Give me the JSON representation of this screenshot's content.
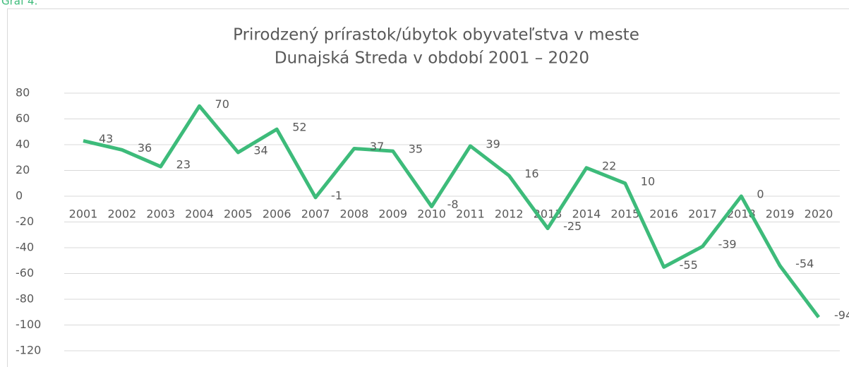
{
  "caption": "Graf 4.",
  "chart_data": {
    "type": "line",
    "title": [
      "Prirodzený prírastok/úbytok obyvateľstva v meste",
      "Dunajská Streda v období 2001 – 2020"
    ],
    "categories": [
      "2001",
      "2002",
      "2003",
      "2004",
      "2005",
      "2006",
      "2007",
      "2008",
      "2009",
      "2010",
      "2011",
      "2012",
      "2013",
      "2014",
      "2015",
      "2016",
      "2017",
      "2018",
      "2019",
      "2020"
    ],
    "series": [
      {
        "name": "Prirodzený prírastok/úbytok",
        "color": "#3dbb7a",
        "values": [
          43,
          36,
          23,
          70,
          34,
          52,
          -1,
          37,
          35,
          -8,
          39,
          16,
          -25,
          22,
          10,
          -55,
          -39,
          0,
          -54,
          -94
        ]
      }
    ],
    "ylim": [
      -120,
      80
    ],
    "yticks": [
      -120,
      -100,
      -80,
      -60,
      -40,
      -20,
      0,
      20,
      40,
      60,
      80
    ],
    "grid": true
  }
}
